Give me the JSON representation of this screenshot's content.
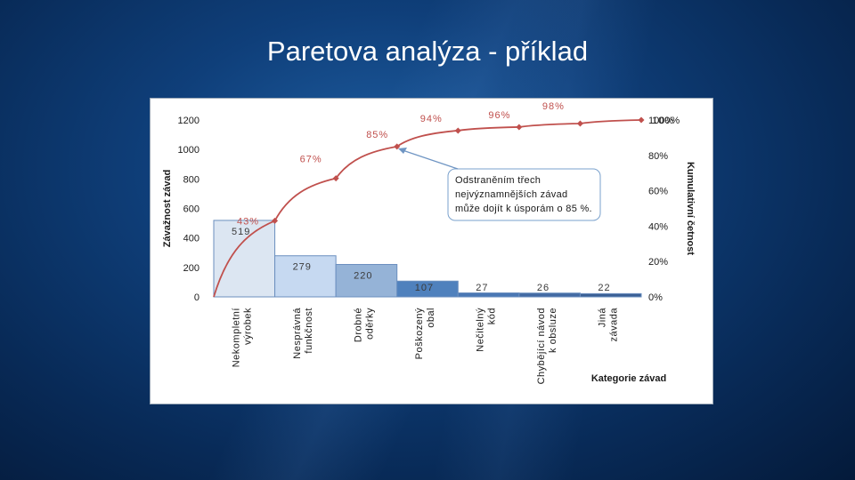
{
  "slide": {
    "title": "Paretova analýza - příklad"
  },
  "colors": {
    "line": "#c0504d",
    "callout_border": "#7aa1cc",
    "bar_outline": "#6b8fbf"
  },
  "chart_data": {
    "type": "bar",
    "xlabel": "Kategorie závad",
    "ylabel": "Závažnost závad",
    "y2label": "Kumulativní četnost",
    "ylim": [
      0,
      1200
    ],
    "y2lim": [
      0,
      1
    ],
    "y_ticks": [
      "0",
      "200",
      "400",
      "600",
      "800",
      "1000",
      "1200"
    ],
    "y2_ticks": [
      "0%",
      "20%",
      "40%",
      "60%",
      "80%",
      "100%"
    ],
    "categories": [
      [
        "Nekompletní",
        "výrobek"
      ],
      [
        "Nesprávná",
        "funkčnost"
      ],
      [
        "Drobné",
        "oděrky"
      ],
      [
        "Poškozený",
        "obal"
      ],
      [
        "Nečitelný",
        "kód"
      ],
      [
        "Chybějící návod",
        "k obsluze"
      ],
      [
        "Jiná",
        "závada"
      ]
    ],
    "values": [
      519,
      279,
      220,
      107,
      27,
      26,
      22
    ],
    "value_labels": [
      "519",
      "279",
      "220",
      "107",
      "27",
      "26",
      "22"
    ],
    "bar_colors": [
      "#dce6f2",
      "#c6d9f1",
      "#95b3d7",
      "#4f81bd",
      "#4a77b4",
      "#426aa3",
      "#3a5f95"
    ],
    "cumulative": [
      0.43,
      0.67,
      0.85,
      0.94,
      0.96,
      0.98,
      1.0
    ],
    "cumulative_labels": [
      "43%",
      "67%",
      "85%",
      "94%",
      "96%",
      "98%",
      "100%"
    ],
    "legend": "none",
    "grid": false
  },
  "annotation": {
    "lines": [
      "Odstraněním třech",
      "nejvýznamnějších závad",
      "může dojít k úsporám o 85 %."
    ]
  }
}
